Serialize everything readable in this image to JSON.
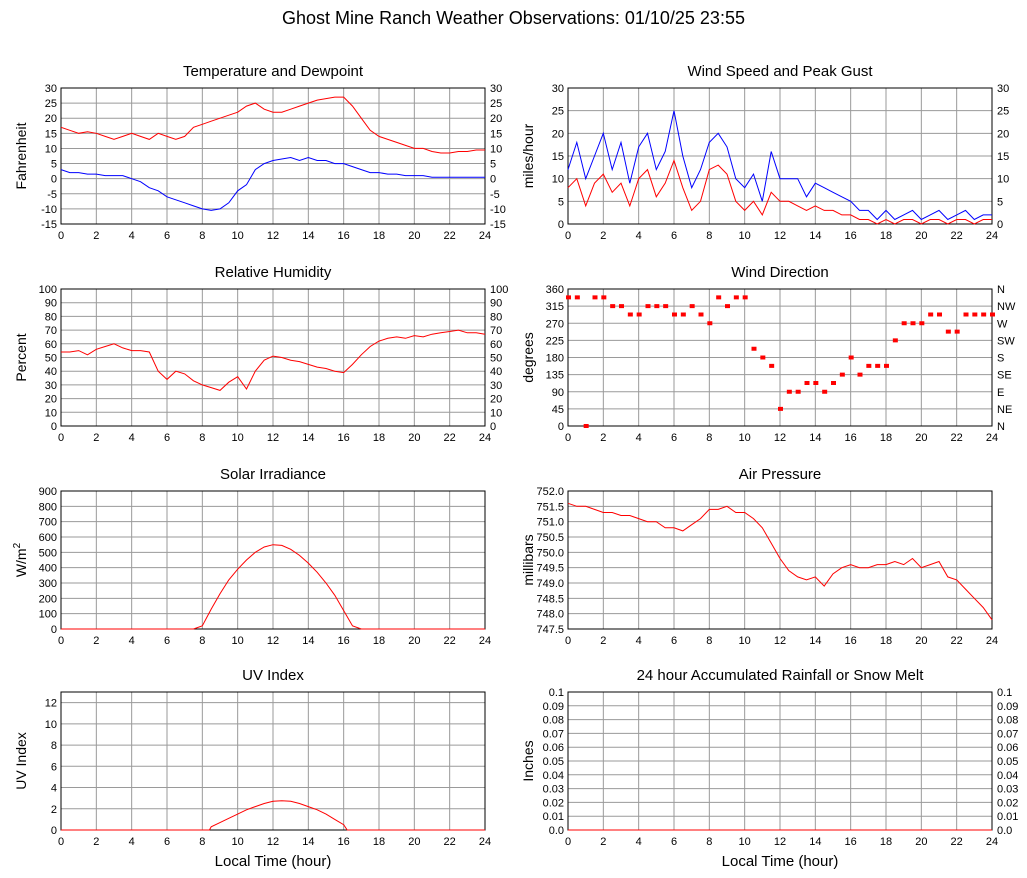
{
  "page": {
    "title": "Ghost Mine Ranch Weather Observations: 01/10/25 23:55",
    "x_axis_label": "Local Time (hour)"
  },
  "colors": {
    "red": "#ff0000",
    "blue": "#0000ff",
    "grid": "#9a9a9a"
  },
  "chart_data": [
    {
      "id": "temp",
      "type": "line",
      "title": "Temperature and Dewpoint",
      "ylabel": "Fahrenheit",
      "xlim": [
        0,
        24
      ],
      "ylim": [
        -15,
        30
      ],
      "yticks": [
        "-15",
        "-10",
        "-5",
        "0",
        "5",
        "10",
        "15",
        "20",
        "25",
        "30"
      ],
      "yticks_right": [
        "-15",
        "-10",
        "-5",
        "0",
        "5",
        "10",
        "15",
        "20",
        "25",
        "30"
      ],
      "x": [
        0,
        0.5,
        1,
        1.5,
        2,
        2.5,
        3,
        3.5,
        4,
        4.5,
        5,
        5.5,
        6,
        6.5,
        7,
        7.5,
        8,
        8.5,
        9,
        9.5,
        10,
        10.5,
        11,
        11.5,
        12,
        12.5,
        13,
        13.5,
        14,
        14.5,
        15,
        15.5,
        16,
        16.5,
        17,
        17.5,
        18,
        18.5,
        19,
        19.5,
        20,
        20.5,
        21,
        21.5,
        22,
        22.5,
        23,
        23.5,
        24
      ],
      "series": [
        {
          "color": "#ff0000",
          "values": [
            17,
            16,
            15,
            15.5,
            15,
            14,
            13,
            14,
            15,
            14,
            13,
            15,
            14,
            13,
            14,
            17,
            18,
            19,
            20,
            21,
            22,
            24,
            25,
            23,
            22,
            22,
            23,
            24,
            25,
            26,
            26.5,
            27,
            27,
            24,
            20,
            16,
            14,
            13,
            12,
            11,
            10,
            10,
            9,
            8.5,
            8.5,
            9,
            9,
            9.5,
            9.5
          ]
        },
        {
          "color": "#0000ff",
          "values": [
            3,
            2,
            2,
            1.5,
            1.5,
            1,
            1,
            1,
            0,
            -1,
            -3,
            -4,
            -6,
            -7,
            -8,
            -9,
            -10,
            -10.5,
            -10,
            -8,
            -4,
            -2,
            3,
            5,
            6,
            6.5,
            7,
            6,
            7,
            6,
            6,
            5,
            5,
            4,
            3,
            2,
            2,
            1.5,
            1.5,
            1,
            1,
            1,
            0.5,
            0.5,
            0.5,
            0.5,
            0.5,
            0.5,
            0.5
          ]
        }
      ]
    },
    {
      "id": "wind",
      "type": "line",
      "title": "Wind Speed and Peak Gust",
      "ylabel": "miles/hour",
      "xlim": [
        0,
        24
      ],
      "ylim": [
        0,
        30
      ],
      "yticks": [
        "0",
        "5",
        "10",
        "15",
        "20",
        "25",
        "30"
      ],
      "yticks_right": [
        "0",
        "5",
        "10",
        "15",
        "20",
        "25",
        "30"
      ],
      "x": [
        0,
        0.5,
        1,
        1.5,
        2,
        2.5,
        3,
        3.5,
        4,
        4.5,
        5,
        5.5,
        6,
        6.5,
        7,
        7.5,
        8,
        8.5,
        9,
        9.5,
        10,
        10.5,
        11,
        11.5,
        12,
        12.5,
        13,
        13.5,
        14,
        14.5,
        15,
        15.5,
        16,
        16.5,
        17,
        17.5,
        18,
        18.5,
        19,
        19.5,
        20,
        20.5,
        21,
        21.5,
        22,
        22.5,
        23,
        23.5,
        24
      ],
      "series": [
        {
          "color": "#0000ff",
          "values": [
            12,
            18,
            10,
            15,
            20,
            12,
            18,
            9,
            17,
            20,
            12,
            16,
            25,
            15,
            8,
            12,
            18,
            20,
            17,
            10,
            8,
            11,
            5,
            16,
            10,
            10,
            10,
            6,
            9,
            8,
            7,
            6,
            5,
            3,
            3,
            1,
            3,
            1,
            2,
            3,
            1,
            2,
            3,
            1,
            2,
            3,
            1,
            2,
            2
          ]
        },
        {
          "color": "#ff0000",
          "values": [
            8,
            10,
            4,
            9,
            11,
            7,
            9,
            4,
            10,
            12,
            6,
            9,
            14,
            8,
            3,
            5,
            12,
            13,
            11,
            5,
            3,
            5,
            2,
            7,
            5,
            5,
            4,
            3,
            4,
            3,
            3,
            2,
            2,
            1,
            1,
            0,
            1,
            0,
            1,
            1,
            0,
            1,
            1,
            0,
            1,
            1,
            0,
            1,
            1
          ]
        }
      ]
    },
    {
      "id": "rh",
      "type": "line",
      "title": "Relative Humidity",
      "ylabel": "Percent",
      "xlim": [
        0,
        24
      ],
      "ylim": [
        0,
        100
      ],
      "yticks": [
        "0",
        "10",
        "20",
        "30",
        "40",
        "50",
        "60",
        "70",
        "80",
        "90",
        "100"
      ],
      "yticks_right": [
        "0",
        "10",
        "20",
        "30",
        "40",
        "50",
        "60",
        "70",
        "80",
        "90",
        "100"
      ],
      "x": [
        0,
        0.5,
        1,
        1.5,
        2,
        2.5,
        3,
        3.5,
        4,
        4.5,
        5,
        5.5,
        6,
        6.5,
        7,
        7.5,
        8,
        8.5,
        9,
        9.5,
        10,
        10.5,
        11,
        11.5,
        12,
        12.5,
        13,
        13.5,
        14,
        14.5,
        15,
        15.5,
        16,
        16.5,
        17,
        17.5,
        18,
        18.5,
        19,
        19.5,
        20,
        20.5,
        21,
        21.5,
        22,
        22.5,
        23,
        23.5,
        24
      ],
      "series": [
        {
          "color": "#ff0000",
          "values": [
            54,
            54,
            55,
            52,
            56,
            58,
            60,
            57,
            55,
            55,
            54,
            40,
            34,
            40,
            38,
            33,
            30,
            28,
            26,
            32,
            36,
            27,
            40,
            48,
            51,
            50,
            48,
            47,
            45,
            43,
            42,
            40,
            39,
            45,
            52,
            58,
            62,
            64,
            65,
            64,
            66,
            65,
            67,
            68,
            69,
            70,
            68,
            68,
            67
          ]
        }
      ]
    },
    {
      "id": "wdir",
      "type": "scatter",
      "title": "Wind Direction",
      "ylabel": "degrees",
      "xlim": [
        0,
        24
      ],
      "ylim": [
        0,
        360
      ],
      "yticks": [
        "0",
        "45",
        "90",
        "135",
        "180",
        "225",
        "270",
        "315",
        "360"
      ],
      "yticks_right": [
        "N",
        "NE",
        "E",
        "SE",
        "S",
        "SW",
        "W",
        "NW",
        "N"
      ],
      "x": [
        0,
        0.5,
        1,
        1.5,
        2,
        2.5,
        3,
        3.5,
        4,
        4.5,
        5,
        5.5,
        6,
        6.5,
        7,
        7.5,
        8,
        8.5,
        9,
        9.5,
        10,
        10.5,
        11,
        11.5,
        12,
        12.5,
        13,
        13.5,
        14,
        14.5,
        15,
        15.5,
        16,
        16.5,
        17,
        17.5,
        18,
        18.5,
        19,
        19.5,
        20,
        20.5,
        21,
        21.5,
        22,
        22.5,
        23,
        23.5,
        24
      ],
      "series": [
        {
          "color": "#ff0000",
          "values": [
            338,
            338,
            0,
            338,
            338,
            315,
            315,
            293,
            293,
            315,
            315,
            315,
            293,
            293,
            315,
            293,
            270,
            338,
            315,
            338,
            338,
            203,
            180,
            158,
            45,
            90,
            90,
            113,
            113,
            90,
            113,
            135,
            180,
            135,
            158,
            158,
            158,
            225,
            270,
            270,
            270,
            293,
            293,
            248,
            248,
            293,
            293,
            293,
            293
          ]
        }
      ]
    },
    {
      "id": "solar",
      "type": "line",
      "title": "Solar Irradiance",
      "ylabel": "W/m",
      "ylabel_sup": "2",
      "xlim": [
        0,
        24
      ],
      "ylim": [
        0,
        900
      ],
      "yticks": [
        "0",
        "100",
        "200",
        "300",
        "400",
        "500",
        "600",
        "700",
        "800",
        "900"
      ],
      "x": [
        0,
        7.5,
        8,
        8.5,
        9,
        9.5,
        10,
        10.5,
        11,
        11.5,
        12,
        12.5,
        13,
        13.5,
        14,
        14.5,
        15,
        15.5,
        16,
        16.5,
        17,
        24
      ],
      "series": [
        {
          "color": "#ff0000",
          "values": [
            0,
            0,
            20,
            130,
            230,
            320,
            390,
            450,
            500,
            535,
            550,
            545,
            520,
            480,
            430,
            370,
            300,
            220,
            120,
            20,
            0,
            0
          ]
        }
      ]
    },
    {
      "id": "pressure",
      "type": "line",
      "title": "Air Pressure",
      "ylabel": "millibars",
      "xlim": [
        0,
        24
      ],
      "ylim": [
        747.5,
        752.0
      ],
      "yticks": [
        "747.5",
        "748.0",
        "748.5",
        "749.0",
        "749.5",
        "750.0",
        "750.5",
        "751.0",
        "751.5",
        "752.0"
      ],
      "x": [
        0,
        0.5,
        1,
        1.5,
        2,
        2.5,
        3,
        3.5,
        4,
        4.5,
        5,
        5.5,
        6,
        6.5,
        7,
        7.5,
        8,
        8.5,
        9,
        9.5,
        10,
        10.5,
        11,
        11.5,
        12,
        12.5,
        13,
        13.5,
        14,
        14.5,
        15,
        15.5,
        16,
        16.5,
        17,
        17.5,
        18,
        18.5,
        19,
        19.5,
        20,
        20.5,
        21,
        21.5,
        22,
        22.5,
        23,
        23.5,
        24
      ],
      "series": [
        {
          "color": "#ff0000",
          "values": [
            751.6,
            751.5,
            751.5,
            751.4,
            751.3,
            751.3,
            751.2,
            751.2,
            751.1,
            751.0,
            751.0,
            750.8,
            750.8,
            750.7,
            750.9,
            751.1,
            751.4,
            751.4,
            751.5,
            751.3,
            751.3,
            751.1,
            750.8,
            750.3,
            749.8,
            749.4,
            749.2,
            749.1,
            749.2,
            748.9,
            749.3,
            749.5,
            749.6,
            749.5,
            749.5,
            749.6,
            749.6,
            749.7,
            749.6,
            749.8,
            749.5,
            749.6,
            749.7,
            749.2,
            749.1,
            748.8,
            748.5,
            748.2,
            747.8
          ]
        }
      ]
    },
    {
      "id": "uv",
      "type": "line",
      "title": "UV Index",
      "ylabel": "UV Index",
      "xlim": [
        0,
        24
      ],
      "ylim": [
        0,
        13
      ],
      "yticks": [
        "0",
        "2",
        "4",
        "6",
        "8",
        "10",
        "12"
      ],
      "ytick_values": [
        0,
        2,
        4,
        6,
        8,
        10,
        12
      ],
      "x": [
        0,
        8.4,
        8.5,
        9,
        9.5,
        10,
        10.5,
        11,
        11.5,
        12,
        12.5,
        13,
        13.5,
        14,
        14.5,
        15,
        15.5,
        16,
        16.2,
        24
      ],
      "series": [
        {
          "color": "#ff0000",
          "values": [
            0,
            0,
            0.3,
            0.7,
            1.1,
            1.5,
            1.9,
            2.2,
            2.5,
            2.7,
            2.75,
            2.7,
            2.5,
            2.2,
            1.9,
            1.5,
            1,
            0.5,
            0,
            0
          ]
        }
      ]
    },
    {
      "id": "rain",
      "type": "line",
      "title": "24 hour Accumulated Rainfall or Snow Melt",
      "ylabel": "Inches",
      "xlim": [
        0,
        24
      ],
      "ylim": [
        0,
        0.1
      ],
      "yticks": [
        "0.0",
        "0.01",
        "0.02",
        "0.03",
        "0.04",
        "0.05",
        "0.06",
        "0.07",
        "0.08",
        "0.09",
        "0.1"
      ],
      "yticks_right": [
        "0.0",
        "0.01",
        "0.02",
        "0.03",
        "0.04",
        "0.05",
        "0.06",
        "0.07",
        "0.08",
        "0.09",
        "0.1"
      ],
      "x": [
        0,
        24
      ],
      "series": [
        {
          "color": "#ff0000",
          "values": [
            0,
            0
          ]
        }
      ]
    }
  ]
}
